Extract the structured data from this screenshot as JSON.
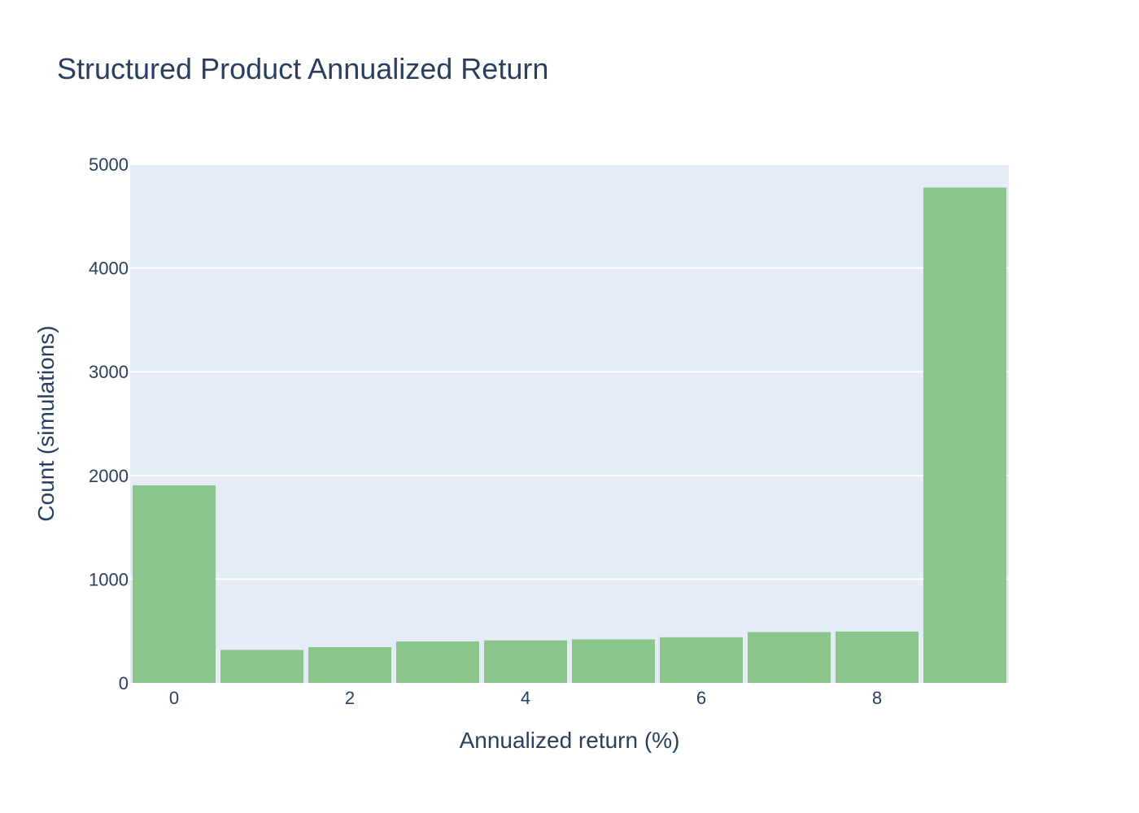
{
  "chart_data": {
    "type": "bar",
    "title": "Structured Product Annualized Return",
    "xlabel": "Annualized return (%)",
    "ylabel": "Count (simulations)",
    "bin_width": 1,
    "bin_centers": [
      0,
      1,
      2,
      3,
      4,
      5,
      6,
      7,
      8,
      9
    ],
    "values": [
      1905,
      318,
      345,
      400,
      410,
      420,
      440,
      490,
      495,
      4775
    ],
    "xlim": [
      -0.5,
      9.5
    ],
    "ylim": [
      0,
      5000
    ],
    "xticks": [
      0,
      2,
      4,
      6,
      8
    ],
    "yticks": [
      0,
      1000,
      2000,
      3000,
      4000,
      5000
    ],
    "bar_color": "#7fc17f",
    "plot_bg": "#e5ecf6",
    "grid": true,
    "legend": "none"
  }
}
